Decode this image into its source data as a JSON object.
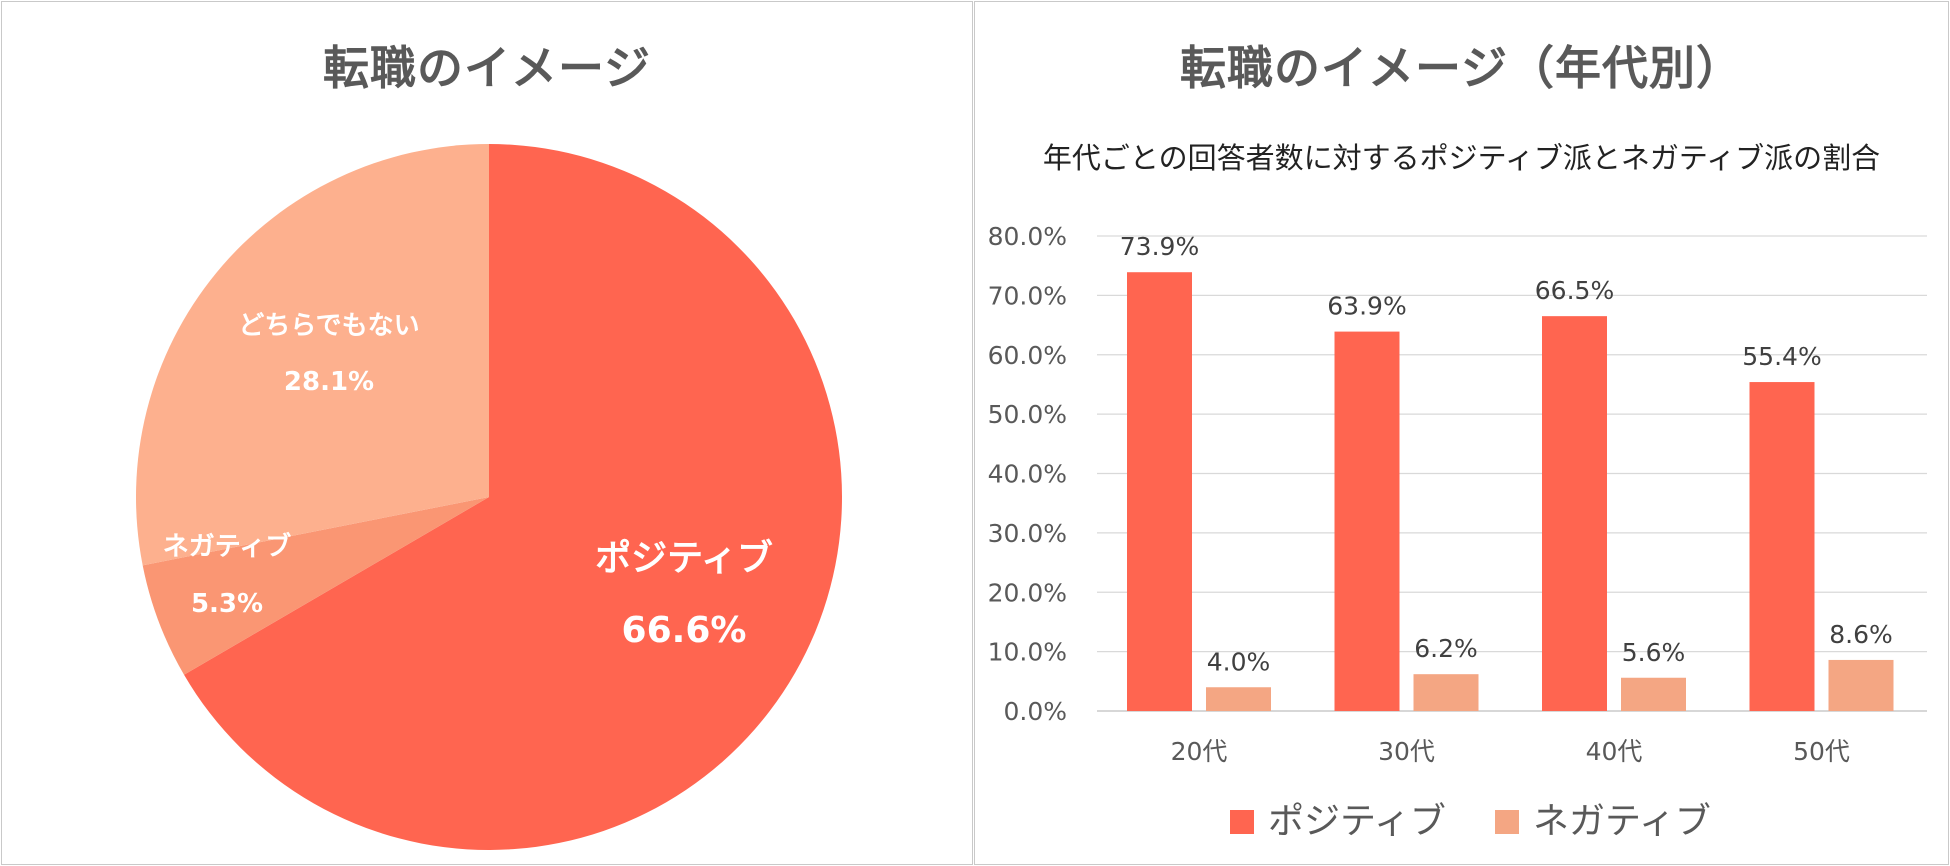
{
  "colors": {
    "positive": "#ff6550",
    "negative": "#f4a683",
    "neutral": "#fdb08e",
    "neutral_label": "#ffffff",
    "gridline": "#d9d9d9",
    "axis_text": "#595959"
  },
  "chart_data": [
    {
      "type": "pie",
      "title": "転職のイメージ",
      "slices": [
        {
          "label": "ポジティブ",
          "value": 66.6,
          "display": "66.6%",
          "color": "#ff6550"
        },
        {
          "label": "ネガティブ",
          "value": 5.3,
          "display": "5.3%",
          "color": "#fa9673"
        },
        {
          "label": "どちらでもない",
          "value": 28.1,
          "display": "28.1%",
          "color": "#fdb08e"
        }
      ],
      "start_angle_deg": 0,
      "direction": "clockwise"
    },
    {
      "type": "bar",
      "title": "転職のイメージ（年代別）",
      "subtitle": "年代ごとの回答者数に対するポジティブ派とネガティブ派の割合",
      "categories": [
        "20代",
        "30代",
        "40代",
        "50代"
      ],
      "series": [
        {
          "name": "ポジティブ",
          "values": [
            73.9,
            63.9,
            66.5,
            55.4
          ],
          "labels": [
            "73.9%",
            "63.9%",
            "66.5%",
            "55.4%"
          ],
          "color": "#ff6550"
        },
        {
          "name": "ネガティブ",
          "values": [
            4.0,
            6.2,
            5.6,
            8.6
          ],
          "labels": [
            "4.0%",
            "6.2%",
            "5.6%",
            "8.6%"
          ],
          "color": "#f4a683"
        }
      ],
      "ylim": [
        0,
        80
      ],
      "yticks": [
        "0.0%",
        "10.0%",
        "20.0%",
        "30.0%",
        "40.0%",
        "50.0%",
        "60.0%",
        "70.0%",
        "80.0%"
      ],
      "ytick_values": [
        0,
        10,
        20,
        30,
        40,
        50,
        60,
        70,
        80
      ],
      "grid": true,
      "legend": "bottom-center"
    }
  ]
}
